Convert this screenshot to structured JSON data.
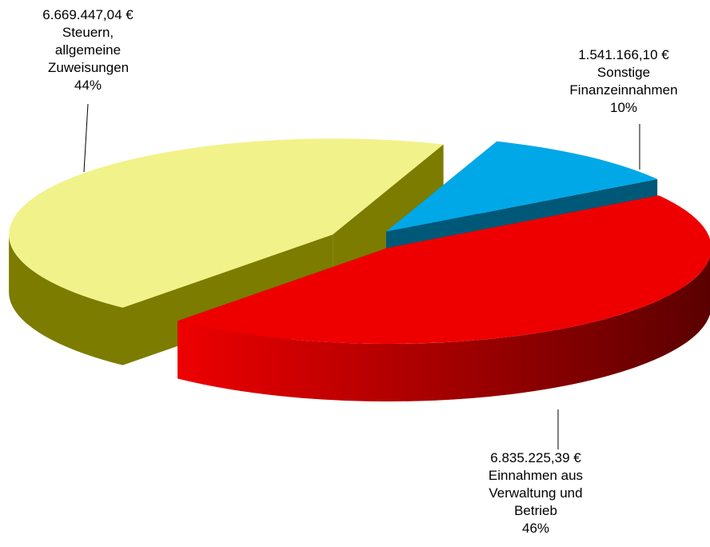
{
  "chart_data": {
    "type": "pie3d",
    "categories": [
      "Sonstige Finanzeinnahmen",
      "Einnahmen aus Verwaltung und Betrieb",
      "Steuern, allgemeine Zuweisungen"
    ],
    "values": [
      1541166.1,
      6835225.39,
      6669447.04
    ],
    "value_labels": [
      "1.541.166,10 €",
      "6.835.225,39 €",
      "6.669.447,04 €"
    ],
    "percent_labels": [
      "10%",
      "46%",
      "44%"
    ],
    "colors": [
      "#00a8e8",
      "#ee0000",
      "#f2f28a"
    ],
    "side_colors": [
      "#005878",
      "#7a0000",
      "#7c7c00"
    ]
  }
}
